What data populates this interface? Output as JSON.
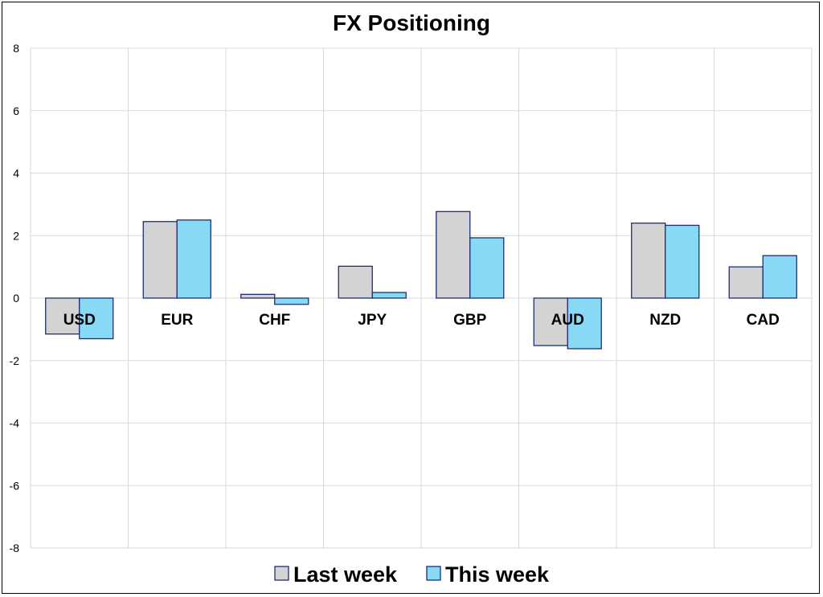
{
  "chart_data": {
    "type": "bar",
    "title": "FX Positioning",
    "categories": [
      "USD",
      "EUR",
      "CHF",
      "JPY",
      "GBP",
      "AUD",
      "NZD",
      "CAD"
    ],
    "series": [
      {
        "name": "Last week",
        "color": "#d3d3d3",
        "values": [
          -1.15,
          2.45,
          0.12,
          1.02,
          2.77,
          -1.52,
          2.4,
          1.0
        ]
      },
      {
        "name": "This week",
        "color": "#87d9f5",
        "values": [
          -1.3,
          2.5,
          -0.2,
          0.18,
          1.93,
          -1.62,
          2.33,
          1.36
        ]
      }
    ],
    "ylim": [
      -8,
      8
    ],
    "yticks": [
      "-8",
      "-6",
      "-4",
      "-2",
      "0",
      "2",
      "4",
      "6",
      "8"
    ],
    "grid": true,
    "bar_outline_color": "#1f2f6e",
    "legend_position": "bottom"
  }
}
